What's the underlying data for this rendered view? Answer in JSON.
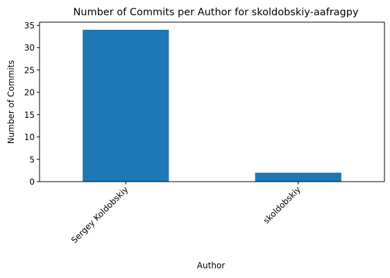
{
  "chart_data": {
    "type": "bar",
    "title": "Number of Commits per Author for skoldobskiy-aafragpy",
    "xlabel": "Author",
    "ylabel": "Number of Commits",
    "categories": [
      "Sergey Koldobskiy",
      "skoldobskiy"
    ],
    "values": [
      34,
      2
    ],
    "ylim": [
      0,
      35.7
    ],
    "yticks": [
      "0",
      "5",
      "10",
      "15",
      "20",
      "25",
      "30",
      "35"
    ],
    "grid": false,
    "bar_color": "#1f77b4"
  }
}
